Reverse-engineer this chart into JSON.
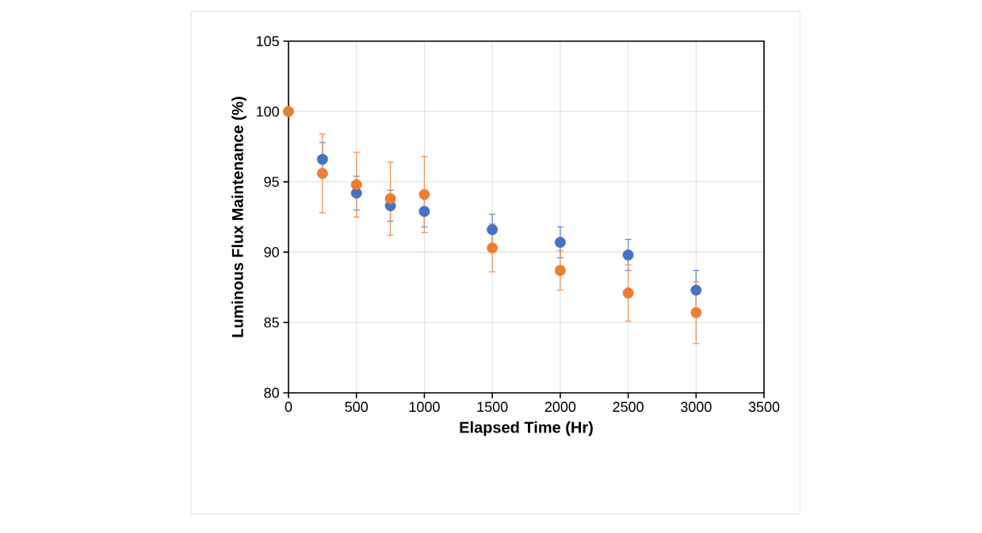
{
  "chart_data": {
    "type": "scatter",
    "xlabel": "Elapsed Time (Hr)",
    "ylabel": "Luminous Flux Maintenance (%)",
    "x": [
      0,
      250,
      500,
      750,
      1000,
      1500,
      2000,
      2500,
      3000
    ],
    "series": [
      {
        "color": "#4472c4",
        "values": [
          null,
          96.6,
          94.2,
          93.3,
          92.9,
          91.6,
          90.7,
          89.8,
          87.3
        ],
        "errors": [
          null,
          1.2,
          1.2,
          1.1,
          1.1,
          1.1,
          1.1,
          1.1,
          1.4
        ]
      },
      {
        "color": "#ed7d31",
        "values": [
          100,
          95.6,
          94.8,
          93.8,
          94.1,
          90.3,
          88.7,
          87.1,
          85.7
        ],
        "errors": [
          null,
          2.8,
          2.3,
          2.6,
          2.7,
          1.7,
          1.4,
          2.0,
          2.2
        ]
      }
    ],
    "xlim": [
      0,
      3500
    ],
    "xticks": [
      0,
      500,
      1000,
      1500,
      2000,
      2500,
      3000,
      3500
    ],
    "ylim": [
      80,
      105
    ],
    "yticks": [
      80,
      85,
      90,
      95,
      100,
      105
    ],
    "grid": true,
    "marker": "circle"
  }
}
